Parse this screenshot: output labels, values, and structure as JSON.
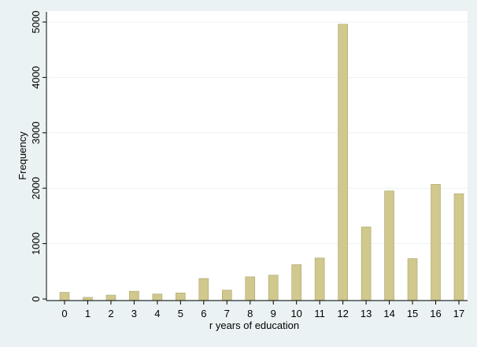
{
  "chart_data": {
    "type": "bar",
    "title": "",
    "xlabel": "r years of education",
    "ylabel": "Frequency",
    "categories": [
      "0",
      "1",
      "2",
      "3",
      "4",
      "5",
      "6",
      "7",
      "8",
      "9",
      "10",
      "11",
      "12",
      "13",
      "14",
      "15",
      "16",
      "17"
    ],
    "values": [
      120,
      30,
      70,
      140,
      90,
      110,
      370,
      160,
      400,
      430,
      620,
      740,
      4960,
      1300,
      1950,
      730,
      2070,
      1900
    ],
    "ylim": [
      0,
      5000
    ],
    "yticks": [
      0,
      1000,
      2000,
      3000,
      4000,
      5000
    ],
    "grid": true,
    "colors": {
      "bar": "#d0c88c",
      "plot_background": "#ffffff",
      "page_background": "#eaf2f3",
      "gridline": "#eef2f3"
    }
  }
}
